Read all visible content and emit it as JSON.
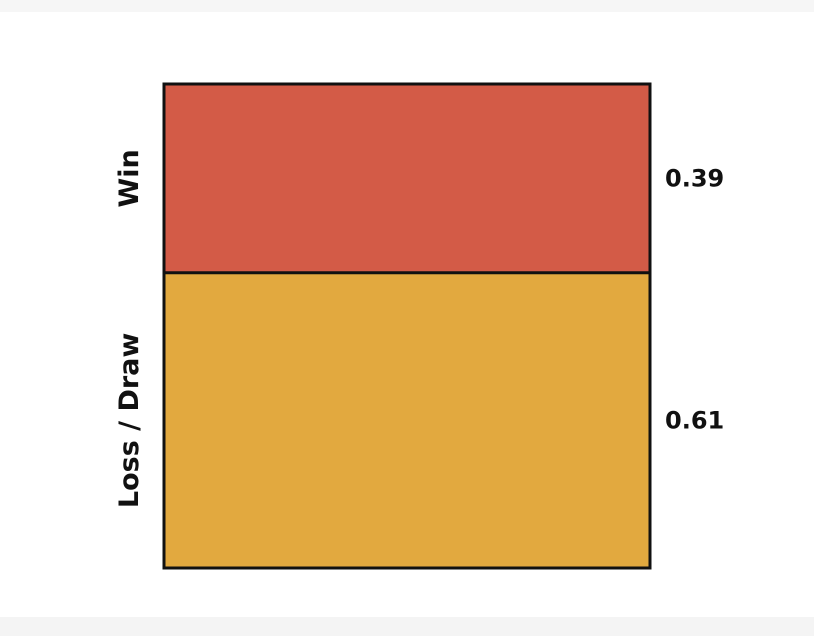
{
  "chart_data": {
    "type": "bar",
    "orientation": "stacked-proportion",
    "categories": [
      "Win",
      "Loss / Draw"
    ],
    "values": [
      0.39,
      0.61
    ],
    "value_labels": [
      "0.39",
      "0.61"
    ],
    "colors": [
      "#d35b47",
      "#e2a93f"
    ],
    "outline_color": "#111111",
    "title": "",
    "xlabel": "",
    "ylabel": "",
    "ylim": [
      0,
      1
    ],
    "grid": false,
    "legend": "none"
  }
}
